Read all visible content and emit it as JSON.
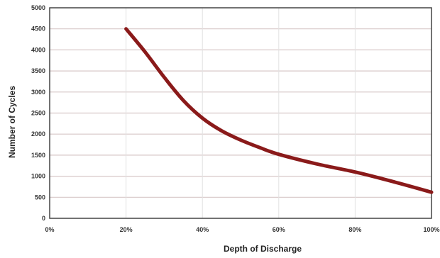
{
  "chart_data": {
    "type": "line",
    "title": "",
    "xlabel": "Depth of Discharge",
    "ylabel": "Number of Cycles",
    "x_tick_labels": [
      "0%",
      "20%",
      "40%",
      "60%",
      "80%",
      "100%"
    ],
    "x_ticks": [
      0,
      20,
      40,
      60,
      80,
      100
    ],
    "y_tick_labels": [
      "0",
      "500",
      "1000",
      "1500",
      "2000",
      "2500",
      "3000",
      "3500",
      "4000",
      "4500",
      "5000"
    ],
    "y_ticks": [
      0,
      500,
      1000,
      1500,
      2000,
      2500,
      3000,
      3500,
      4000,
      4500,
      5000
    ],
    "xlim": [
      0,
      100
    ],
    "ylim": [
      0,
      5000
    ],
    "grid": true,
    "series": [
      {
        "color": "#8a1a1a",
        "x": [
          20,
          25,
          30,
          35,
          40,
          45,
          50,
          55,
          60,
          70,
          80,
          90,
          100
        ],
        "y": [
          4500,
          3950,
          3350,
          2800,
          2380,
          2080,
          1860,
          1680,
          1520,
          1290,
          1100,
          870,
          620
        ]
      }
    ]
  }
}
